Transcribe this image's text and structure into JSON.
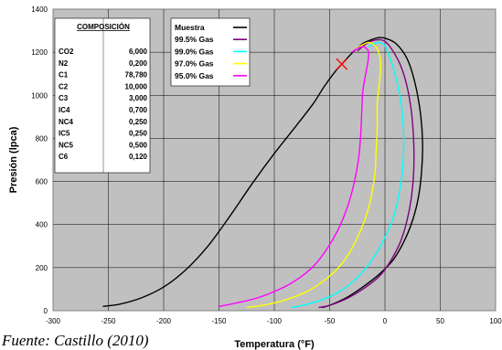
{
  "chart_data": {
    "type": "line",
    "xlabel": "Temperatura (°F)",
    "ylabel": "Presión (lpca)",
    "xlim": [
      -300,
      100
    ],
    "ylim": [
      0,
      1400
    ],
    "x_ticks": [
      -300,
      -250,
      -200,
      -150,
      -100,
      -50,
      0,
      50,
      100
    ],
    "y_ticks": [
      0,
      200,
      400,
      600,
      800,
      1000,
      1200,
      1400
    ],
    "grid": true,
    "plot_background": "#c0c0c0",
    "legend_position": "top-center",
    "series": [
      {
        "name": "Muestra",
        "color": "#000000",
        "points": [
          [
            -255,
            20
          ],
          [
            -240,
            30
          ],
          [
            -220,
            60
          ],
          [
            -200,
            110
          ],
          [
            -180,
            190
          ],
          [
            -160,
            300
          ],
          [
            -140,
            440
          ],
          [
            -120,
            590
          ],
          [
            -100,
            730
          ],
          [
            -80,
            860
          ],
          [
            -65,
            960
          ],
          [
            -55,
            1040
          ],
          [
            -45,
            1110
          ],
          [
            -38,
            1150
          ],
          [
            -30,
            1195
          ],
          [
            -20,
            1240
          ],
          [
            -10,
            1262
          ],
          [
            -5,
            1268
          ],
          [
            0,
            1265
          ],
          [
            10,
            1240
          ],
          [
            20,
            1170
          ],
          [
            27,
            1060
          ],
          [
            32,
            920
          ],
          [
            34,
            780
          ],
          [
            33,
            640
          ],
          [
            30,
            520
          ],
          [
            25,
            420
          ],
          [
            18,
            330
          ],
          [
            8,
            240
          ],
          [
            -5,
            170
          ],
          [
            -20,
            110
          ],
          [
            -35,
            60
          ],
          [
            -50,
            25
          ],
          [
            -57,
            15
          ]
        ]
      },
      {
        "name": "99.5% Gas",
        "color": "#800080",
        "points": [
          [
            -60,
            15
          ],
          [
            -50,
            25
          ],
          [
            -35,
            55
          ],
          [
            -20,
            100
          ],
          [
            -5,
            160
          ],
          [
            5,
            230
          ],
          [
            14,
            320
          ],
          [
            20,
            420
          ],
          [
            24,
            530
          ],
          [
            26,
            650
          ],
          [
            26,
            780
          ],
          [
            24,
            920
          ],
          [
            20,
            1040
          ],
          [
            14,
            1140
          ],
          [
            6,
            1215
          ],
          [
            0,
            1250
          ],
          [
            -5,
            1258
          ],
          [
            -12,
            1252
          ],
          [
            -18,
            1235
          ],
          [
            -25,
            1205
          ]
        ]
      },
      {
        "name": "99.0% Gas",
        "color": "#00ffff",
        "points": [
          [
            -85,
            15
          ],
          [
            -70,
            30
          ],
          [
            -50,
            65
          ],
          [
            -35,
            110
          ],
          [
            -22,
            170
          ],
          [
            -10,
            250
          ],
          [
            0,
            340
          ],
          [
            8,
            440
          ],
          [
            13,
            550
          ],
          [
            16,
            660
          ],
          [
            17,
            780
          ],
          [
            16,
            900
          ],
          [
            13,
            1010
          ],
          [
            9,
            1100
          ],
          [
            4,
            1180
          ],
          [
            0,
            1230
          ],
          [
            -5,
            1245
          ],
          [
            -10,
            1240
          ],
          [
            -15,
            1225
          ]
        ]
      },
      {
        "name": "97.0% Gas",
        "color": "#ffff00",
        "points": [
          [
            -125,
            15
          ],
          [
            -110,
            25
          ],
          [
            -90,
            50
          ],
          [
            -70,
            90
          ],
          [
            -55,
            140
          ],
          [
            -42,
            200
          ],
          [
            -32,
            270
          ],
          [
            -24,
            350
          ],
          [
            -17,
            440
          ],
          [
            -12,
            540
          ],
          [
            -9,
            640
          ],
          [
            -8,
            740
          ],
          [
            -7,
            850
          ],
          [
            -7,
            960
          ],
          [
            -5,
            1060
          ],
          [
            -4,
            1150
          ],
          [
            -6,
            1205
          ],
          [
            -10,
            1235
          ],
          [
            -15,
            1245
          ],
          [
            -20,
            1235
          ],
          [
            -27,
            1215
          ]
        ]
      },
      {
        "name": "95.0% Gas",
        "color": "#ff00ff",
        "points": [
          [
            -150,
            20
          ],
          [
            -135,
            35
          ],
          [
            -115,
            60
          ],
          [
            -95,
            100
          ],
          [
            -78,
            150
          ],
          [
            -64,
            210
          ],
          [
            -52,
            290
          ],
          [
            -42,
            380
          ],
          [
            -34,
            480
          ],
          [
            -28,
            590
          ],
          [
            -24,
            700
          ],
          [
            -22,
            810
          ],
          [
            -21,
            920
          ],
          [
            -20,
            1020
          ],
          [
            -17,
            1110
          ],
          [
            -15,
            1170
          ],
          [
            -15,
            1205
          ],
          [
            -19,
            1225
          ],
          [
            -24,
            1220
          ],
          [
            -30,
            1200
          ]
        ]
      }
    ],
    "annotation_marker": {
      "symbol": "x",
      "color": "#ff0000",
      "x": -39,
      "y": 1145
    }
  },
  "composition_box": {
    "header": "COMPOSICIÓN",
    "rows": [
      {
        "component": "CO2",
        "value": "6,000"
      },
      {
        "component": "N2",
        "value": "0,200"
      },
      {
        "component": "C1",
        "value": "78,780"
      },
      {
        "component": "C2",
        "value": "10,000"
      },
      {
        "component": "C3",
        "value": "3,000"
      },
      {
        "component": "IC4",
        "value": "0,700"
      },
      {
        "component": "NC4",
        "value": "0,250"
      },
      {
        "component": "IC5",
        "value": "0,250"
      },
      {
        "component": "NC5",
        "value": "0,500"
      },
      {
        "component": "C6",
        "value": "0,120"
      }
    ]
  },
  "source_note": "Fuente: Castillo (2010)"
}
